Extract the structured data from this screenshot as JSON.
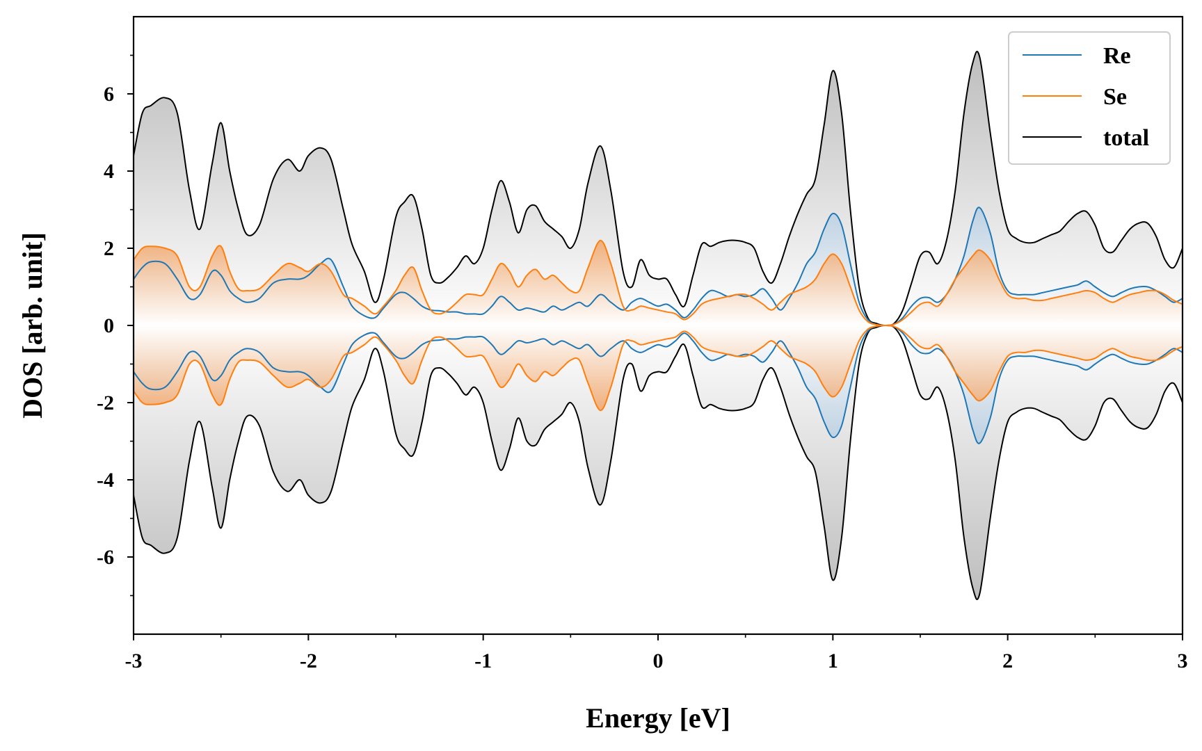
{
  "chart_data": {
    "type": "line",
    "xlabel": "Energy [eV]",
    "ylabel": "DOS [arb. unit]",
    "xlim": [
      -3,
      3
    ],
    "ylim": [
      -8,
      8
    ],
    "xticks": [
      -3,
      -2,
      -1,
      0,
      1,
      2,
      3
    ],
    "xtick_labels": [
      "-3",
      "-2",
      "-1",
      "0",
      "1",
      "2",
      "3"
    ],
    "yticks": [
      -6,
      -4,
      -2,
      0,
      2,
      4,
      6
    ],
    "ytick_labels": [
      "-6",
      "-4",
      "-2",
      "0",
      "2",
      "4",
      "6"
    ],
    "mirrored": true,
    "legend_position": "top-right",
    "grid": false,
    "x": [
      -3.0,
      -2.95,
      -2.9,
      -2.82,
      -2.75,
      -2.68,
      -2.62,
      -2.55,
      -2.5,
      -2.45,
      -2.4,
      -2.35,
      -2.28,
      -2.2,
      -2.12,
      -2.05,
      -2.0,
      -1.93,
      -1.87,
      -1.8,
      -1.75,
      -1.68,
      -1.62,
      -1.57,
      -1.5,
      -1.45,
      -1.4,
      -1.35,
      -1.3,
      -1.25,
      -1.2,
      -1.15,
      -1.1,
      -1.05,
      -1.0,
      -0.95,
      -0.9,
      -0.85,
      -0.8,
      -0.75,
      -0.7,
      -0.65,
      -0.6,
      -0.55,
      -0.5,
      -0.45,
      -0.4,
      -0.33,
      -0.27,
      -0.2,
      -0.15,
      -0.1,
      -0.05,
      0.0,
      0.05,
      0.1,
      0.15,
      0.2,
      0.25,
      0.3,
      0.35,
      0.4,
      0.45,
      0.5,
      0.55,
      0.6,
      0.65,
      0.7,
      0.75,
      0.8,
      0.85,
      0.9,
      0.95,
      1.0,
      1.05,
      1.1,
      1.15,
      1.2,
      1.25,
      1.3,
      1.35,
      1.4,
      1.45,
      1.5,
      1.55,
      1.6,
      1.65,
      1.7,
      1.75,
      1.8,
      1.84,
      1.9,
      1.95,
      2.0,
      2.05,
      2.1,
      2.15,
      2.2,
      2.25,
      2.3,
      2.35,
      2.4,
      2.45,
      2.5,
      2.55,
      2.6,
      2.65,
      2.7,
      2.75,
      2.8,
      2.85,
      2.9,
      2.95,
      3.0
    ],
    "series": [
      {
        "name": "Re",
        "color": "#1f77b4",
        "values": [
          1.2,
          1.5,
          1.65,
          1.6,
          1.2,
          0.7,
          0.8,
          1.4,
          1.3,
          0.9,
          0.7,
          0.6,
          0.7,
          1.1,
          1.2,
          1.2,
          1.3,
          1.6,
          1.7,
          1.0,
          0.5,
          0.25,
          0.2,
          0.45,
          0.8,
          0.85,
          0.7,
          0.5,
          0.4,
          0.38,
          0.35,
          0.35,
          0.3,
          0.3,
          0.3,
          0.5,
          0.75,
          0.6,
          0.4,
          0.45,
          0.4,
          0.35,
          0.5,
          0.4,
          0.5,
          0.6,
          0.5,
          0.8,
          0.6,
          0.4,
          0.6,
          0.7,
          0.6,
          0.5,
          0.55,
          0.4,
          0.2,
          0.4,
          0.7,
          0.9,
          0.85,
          0.75,
          0.8,
          0.75,
          0.8,
          0.95,
          0.7,
          0.4,
          0.7,
          1.1,
          1.6,
          1.9,
          2.5,
          2.9,
          2.6,
          1.6,
          0.6,
          0.15,
          0.02,
          0.0,
          0.03,
          0.2,
          0.5,
          0.7,
          0.72,
          0.6,
          0.8,
          1.2,
          1.8,
          2.7,
          3.05,
          2.4,
          1.4,
          0.9,
          0.8,
          0.8,
          0.8,
          0.85,
          0.9,
          0.95,
          1.0,
          1.05,
          1.15,
          1.0,
          0.85,
          0.75,
          0.85,
          0.95,
          1.0,
          1.0,
          0.9,
          0.75,
          0.6,
          0.7
        ]
      },
      {
        "name": "Se",
        "color": "#ff7f0e",
        "values": [
          1.7,
          2.0,
          2.05,
          2.0,
          1.8,
          1.0,
          1.0,
          1.8,
          2.05,
          1.4,
          0.95,
          0.9,
          0.95,
          1.3,
          1.6,
          1.5,
          1.4,
          1.6,
          1.4,
          0.8,
          0.7,
          0.5,
          0.3,
          0.5,
          0.9,
          1.3,
          1.5,
          0.9,
          0.4,
          0.3,
          0.4,
          0.6,
          0.8,
          0.8,
          0.8,
          1.2,
          1.6,
          1.4,
          1.0,
          1.3,
          1.45,
          1.2,
          1.3,
          1.1,
          0.9,
          0.9,
          1.5,
          2.2,
          1.6,
          0.5,
          0.4,
          0.5,
          0.45,
          0.4,
          0.35,
          0.3,
          0.15,
          0.3,
          0.55,
          0.65,
          0.7,
          0.75,
          0.8,
          0.8,
          0.7,
          0.55,
          0.4,
          0.6,
          0.8,
          0.9,
          1.0,
          1.2,
          1.6,
          1.85,
          1.6,
          1.0,
          0.4,
          0.1,
          0.02,
          0.0,
          0.03,
          0.15,
          0.35,
          0.55,
          0.6,
          0.5,
          0.8,
          1.2,
          1.5,
          1.8,
          1.95,
          1.7,
          1.2,
          0.8,
          0.7,
          0.7,
          0.65,
          0.65,
          0.7,
          0.75,
          0.8,
          0.85,
          0.9,
          0.85,
          0.7,
          0.6,
          0.7,
          0.8,
          0.85,
          0.9,
          0.9,
          0.8,
          0.65,
          0.55
        ]
      },
      {
        "name": "total",
        "color": "#000000",
        "values": [
          4.4,
          5.5,
          5.7,
          5.9,
          5.5,
          3.5,
          2.5,
          4.2,
          5.25,
          4.0,
          3.0,
          2.35,
          2.6,
          3.8,
          4.3,
          4.0,
          4.4,
          4.6,
          4.3,
          3.0,
          2.1,
          1.4,
          0.6,
          1.2,
          2.8,
          3.2,
          3.35,
          2.5,
          1.3,
          1.1,
          1.25,
          1.5,
          1.8,
          1.6,
          2.0,
          3.0,
          3.75,
          3.2,
          2.4,
          3.0,
          3.1,
          2.7,
          2.5,
          2.3,
          2.0,
          2.5,
          3.7,
          4.65,
          3.5,
          1.4,
          1.0,
          1.7,
          1.3,
          1.2,
          1.2,
          0.8,
          0.5,
          1.3,
          2.1,
          2.05,
          2.15,
          2.2,
          2.2,
          2.15,
          2.0,
          1.4,
          1.1,
          1.6,
          2.3,
          2.9,
          3.4,
          3.8,
          5.2,
          6.6,
          5.5,
          3.0,
          1.0,
          0.2,
          0.05,
          0.0,
          0.05,
          0.4,
          1.1,
          1.8,
          1.9,
          1.6,
          2.2,
          3.5,
          5.5,
          6.8,
          6.95,
          5.0,
          3.5,
          2.5,
          2.25,
          2.15,
          2.15,
          2.25,
          2.35,
          2.45,
          2.7,
          2.9,
          2.95,
          2.6,
          2.0,
          1.9,
          2.2,
          2.5,
          2.65,
          2.65,
          2.3,
          1.7,
          1.5,
          2.0
        ]
      }
    ]
  }
}
